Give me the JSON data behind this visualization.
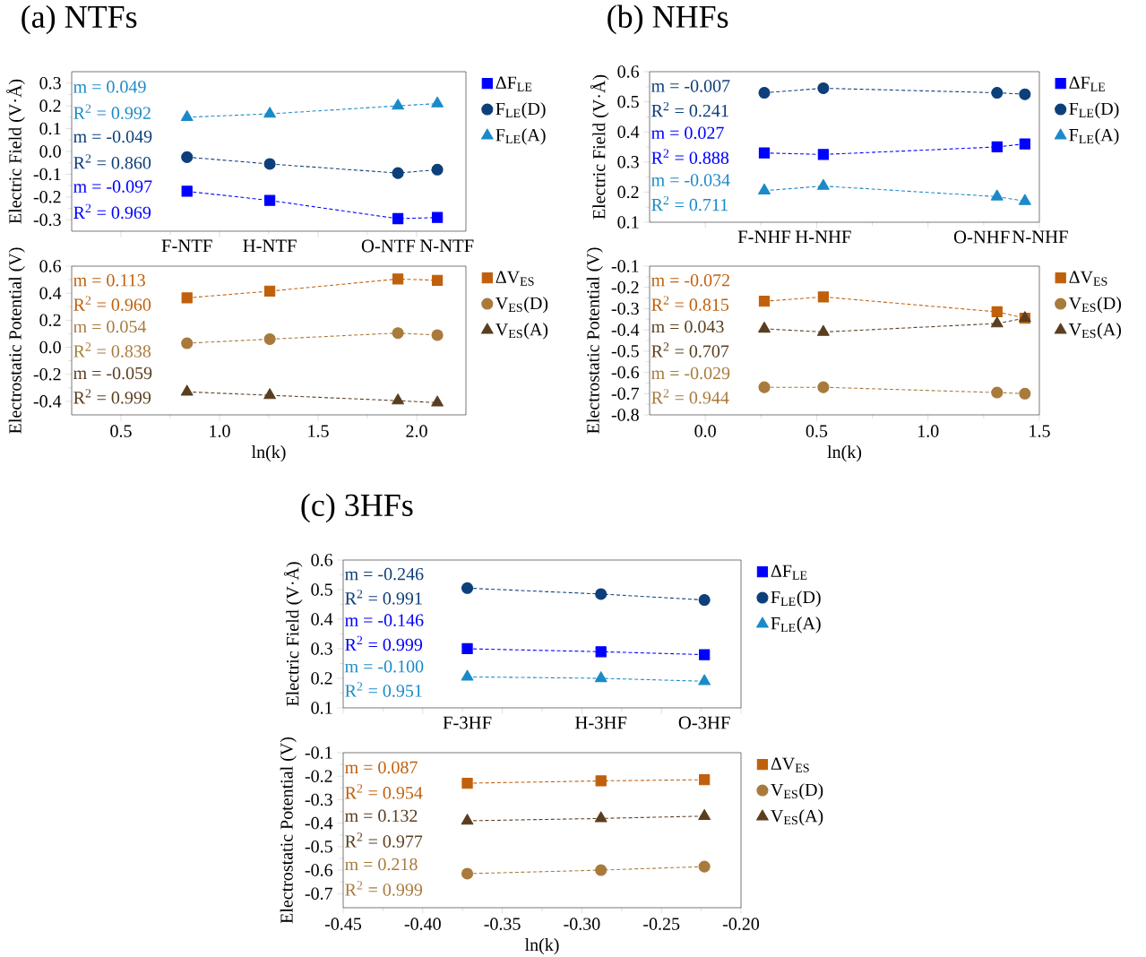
{
  "chart_data": [
    {
      "type": "line",
      "title": "(a) NTFs",
      "ylabel": "Electric Field (V·Å)",
      "tick_labels": "y",
      "legend": "right",
      "line_style": "dashed",
      "x": [
        0.835,
        1.255,
        1.905,
        2.105
      ],
      "xlim": [
        0.25,
        2.25
      ],
      "xticks": [
        {
          "value": 0.5,
          "label": null
        },
        {
          "value": 1,
          "label": null
        },
        {
          "value": 1.5,
          "label": null
        },
        {
          "value": 2,
          "label": null
        }
      ],
      "ylim": [
        -0.35,
        0.35
      ],
      "yticks": [
        -0.3,
        -0.2,
        -0.1,
        {
          "value": 0,
          "label": "0.0"
        },
        0.1,
        0.2,
        0.3
      ],
      "series": [
        {
          "name": "ΔF$_{LE}$",
          "color": "#0000ff",
          "marker": "square",
          "values": [
            -0.175,
            -0.215,
            -0.295,
            -0.29
          ]
        },
        {
          "name": "F$_{LE}$(D)",
          "color": "#0d3f7a",
          "marker": "circle",
          "values": [
            -0.025,
            -0.055,
            -0.095,
            -0.08
          ]
        },
        {
          "name": "F$_{LE}$(A)",
          "color": "#1a8ac8",
          "marker": "triangle",
          "values": [
            0.15,
            0.165,
            0.2,
            0.21
          ]
        }
      ],
      "annotations": [
        "m = 0.049",
        "R$^{2}$ = 0.992",
        "m = -0.049",
        "R$^{2}$ = 0.860",
        "m = -0.097",
        "R$^{2}$ = 0.969",
        "F-NTF",
        "H-NTF",
        "O-NTF",
        "N-NTF"
      ]
    },
    {
      "type": "line",
      "xlabel": "ln(k)",
      "ylabel": "Electrostatic Potential (V)",
      "legend": "right",
      "line_style": "dashed",
      "x": [
        0.835,
        1.255,
        1.905,
        2.105
      ],
      "xlim": [
        0.25,
        2.25
      ],
      "xticks": [
        0.5,
        {
          "value": 1,
          "label": "1.0"
        },
        1.5,
        {
          "value": 2,
          "label": "2.0"
        }
      ],
      "ylim": [
        -0.5,
        0.6
      ],
      "yticks": [
        -0.4,
        -0.2,
        {
          "value": 0,
          "label": "0.0"
        },
        0.2,
        0.4,
        0.6
      ],
      "series": [
        {
          "name": "ΔV$_{ES}$",
          "color": "#c0600c",
          "marker": "square",
          "values": [
            0.365,
            0.415,
            0.505,
            0.495
          ]
        },
        {
          "name": "V$_{ES}$(D)",
          "color": "#a87a3c",
          "marker": "circle",
          "values": [
            0.03,
            0.06,
            0.105,
            0.09
          ]
        },
        {
          "name": "V$_{ES}$(A)",
          "color": "#5a3e20",
          "marker": "triangle",
          "values": [
            -0.33,
            -0.355,
            -0.395,
            -0.41
          ]
        }
      ],
      "annotations": [
        "m = 0.113",
        "R$^{2}$ = 0.960",
        "m = 0.054",
        "R$^{2}$ = 0.838",
        "m = -0.059",
        "R$^{2}$ = 0.999"
      ]
    },
    {
      "type": "line",
      "title": "(b) NHFs",
      "ylabel": "Electric Field (V·Å)",
      "tick_labels": "y",
      "legend": "right",
      "line_style": "dashed",
      "x": [
        0.265,
        0.53,
        1.31,
        1.435
      ],
      "xlim": [
        -0.25,
        1.5
      ],
      "xticks": [
        {
          "value": 0,
          "label": null
        },
        {
          "value": 0.5,
          "label": null
        },
        {
          "value": 1,
          "label": null
        },
        {
          "value": 1.5,
          "label": null
        }
      ],
      "ylim": [
        0.1,
        0.6
      ],
      "yticks": [
        0.1,
        0.2,
        0.3,
        0.4,
        0.5,
        0.6
      ],
      "series": [
        {
          "name": "ΔF$_{LE}$",
          "color": "#0000ff",
          "marker": "square",
          "values": [
            0.33,
            0.325,
            0.35,
            0.36
          ]
        },
        {
          "name": "F$_{LE}$(D)",
          "color": "#0d3f7a",
          "marker": "circle",
          "values": [
            0.53,
            0.545,
            0.53,
            0.525
          ]
        },
        {
          "name": "F$_{LE}$(A)",
          "color": "#1a8ac8",
          "marker": "triangle",
          "values": [
            0.205,
            0.22,
            0.185,
            0.17
          ]
        }
      ],
      "annotations": [
        "m = -0.007",
        "R$^{2}$ = 0.241",
        "m = 0.027",
        "R$^{2}$ = 0.888",
        "m = -0.034",
        "R$^{2}$ = 0.711",
        "F-NHF",
        "H-NHF",
        "O-NHF",
        "N-NHF"
      ]
    },
    {
      "type": "line",
      "xlabel": "ln(k)",
      "ylabel": "Electrostatic Potential (V)",
      "legend": "right",
      "line_style": "dashed",
      "x": [
        0.265,
        0.53,
        1.31,
        1.435
      ],
      "xlim": [
        -0.25,
        1.5
      ],
      "xticks": [
        {
          "value": 0,
          "label": "0.0"
        },
        0.5,
        {
          "value": 1,
          "label": "1.0"
        },
        1.5
      ],
      "ylim": [
        -0.8,
        -0.1
      ],
      "yticks": [
        -0.8,
        -0.7,
        -0.6,
        -0.5,
        -0.4,
        -0.3,
        -0.2,
        -0.1
      ],
      "series": [
        {
          "name": "ΔV$_{ES}$",
          "color": "#c0600c",
          "marker": "square",
          "values": [
            -0.265,
            -0.245,
            -0.315,
            -0.345
          ]
        },
        {
          "name": "V$_{ES}$(D)",
          "color": "#a87a3c",
          "marker": "circle",
          "values": [
            -0.67,
            -0.67,
            -0.695,
            -0.7
          ]
        },
        {
          "name": "V$_{ES}$(A)",
          "color": "#5a3e20",
          "marker": "triangle",
          "values": [
            -0.395,
            -0.41,
            -0.37,
            -0.345
          ]
        }
      ],
      "annotations": [
        "m = -0.072",
        "R$^{2}$ = 0.815",
        "m = 0.043",
        "R$^{2}$ = 0.707",
        "m = -0.029",
        "R$^{2}$ = 0.944"
      ]
    },
    {
      "type": "line",
      "title": "(c) 3HFs",
      "ylabel": "Electric Field (V·Å)",
      "tick_labels": "y",
      "legend": "right",
      "line_style": "dashed",
      "x": [
        -0.372,
        -0.288,
        -0.223
      ],
      "xlim": [
        -0.45,
        -0.2
      ],
      "xticks": [
        {
          "value": -0.45,
          "label": null
        },
        {
          "value": -0.4,
          "label": null
        },
        {
          "value": -0.35,
          "label": null
        },
        {
          "value": -0.3,
          "label": null
        },
        {
          "value": -0.25,
          "label": null
        },
        {
          "value": -0.2,
          "label": null
        }
      ],
      "ylim": [
        0.1,
        0.6
      ],
      "yticks": [
        0.1,
        0.2,
        0.3,
        0.4,
        0.5,
        0.6
      ],
      "series": [
        {
          "name": "ΔF$_{LE}$",
          "color": "#0000ff",
          "marker": "square",
          "values": [
            0.3,
            0.29,
            0.28
          ]
        },
        {
          "name": "F$_{LE}$(D)",
          "color": "#0d3f7a",
          "marker": "circle",
          "values": [
            0.505,
            0.485,
            0.465
          ]
        },
        {
          "name": "F$_{LE}$(A)",
          "color": "#1a8ac8",
          "marker": "triangle",
          "values": [
            0.205,
            0.2,
            0.19
          ]
        }
      ],
      "annotations": [
        "m = -0.246",
        "R$^{2}$ = 0.991",
        "m = -0.146",
        "R$^{2}$ = 0.999",
        "m = -0.100",
        "R$^{2}$ = 0.951",
        "F-3HF",
        "H-3HF",
        "O-3HF"
      ]
    },
    {
      "type": "line",
      "xlabel": "ln(k)",
      "ylabel": "Electrostatic Potential (V)",
      "legend": "right",
      "line_style": "dashed",
      "x": [
        -0.372,
        -0.288,
        -0.223
      ],
      "xlim": [
        -0.45,
        -0.2
      ],
      "xticks": [
        -0.45,
        {
          "value": -0.4,
          "label": "-0.40"
        },
        -0.35,
        {
          "value": -0.3,
          "label": "-0.30"
        },
        -0.25,
        {
          "value": -0.2,
          "label": "-0.20"
        }
      ],
      "ylim": [
        -0.76,
        -0.1
      ],
      "yticks": [
        -0.7,
        -0.6,
        -0.5,
        -0.4,
        -0.3,
        -0.2,
        -0.1
      ],
      "series": [
        {
          "name": "ΔV$_{ES}$",
          "color": "#c0600c",
          "marker": "square",
          "values": [
            -0.23,
            -0.22,
            -0.215
          ]
        },
        {
          "name": "V$_{ES}$(D)",
          "color": "#a87a3c",
          "marker": "circle",
          "values": [
            -0.615,
            -0.6,
            -0.585
          ]
        },
        {
          "name": "V$_{ES}$(A)",
          "color": "#5a3e20",
          "marker": "triangle",
          "values": [
            -0.39,
            -0.38,
            -0.37
          ]
        }
      ],
      "annotations": [
        "m = 0.087",
        "R$^{2}$ = 0.954",
        "m = 0.132",
        "R$^{2}$ = 0.977",
        "m = 0.218",
        "R$^{2}$ = 0.999"
      ]
    }
  ]
}
